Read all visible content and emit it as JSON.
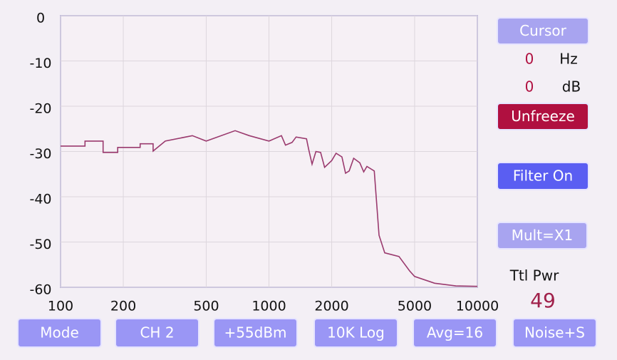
{
  "chart_data": {
    "type": "line",
    "log_x": true,
    "color": "#9a3a6e",
    "grid": true,
    "x": [
      100,
      131,
      131,
      160,
      160,
      188,
      188,
      241,
      241,
      278,
      278,
      318,
      429,
      500,
      688,
      805,
      1000,
      1148,
      1200,
      1291,
      1350,
      1514,
      1550,
      1610,
      1680,
      1770,
      1850,
      2000,
      2100,
      2240,
      2330,
      2426,
      2550,
      2728,
      2850,
      2952,
      3200,
      3375,
      3594,
      4207,
      4733,
      5000,
      6237,
      7885,
      10000
    ],
    "values": [
      -28.8,
      -28.8,
      -27.7,
      -27.7,
      -30.2,
      -30.2,
      -29.1,
      -29.1,
      -28.3,
      -28.3,
      -29.9,
      -27.7,
      -26.5,
      -27.7,
      -25.4,
      -26.5,
      -27.7,
      -26.5,
      -28.6,
      -28.0,
      -26.8,
      -27.2,
      -29.5,
      -32.8,
      -30.0,
      -30.2,
      -33.5,
      -32.0,
      -30.4,
      -31.2,
      -34.8,
      -34.3,
      -31.5,
      -32.5,
      -34.5,
      -33.3,
      -34.3,
      -48.5,
      -52.4,
      -53.2,
      -56.4,
      -57.6,
      -59.1,
      -59.7,
      -59.8
    ],
    "xlim": [
      100,
      10000
    ],
    "ylim": [
      -60,
      0
    ],
    "xticks": [
      100,
      200,
      500,
      1000,
      2000,
      5000,
      10000
    ],
    "yticks": [
      0,
      -10,
      -20,
      -30,
      -40,
      -50,
      -60
    ]
  },
  "side_panel": {
    "cursor_button": "Cursor",
    "cursor_hz": 0,
    "hz_unit": "Hz",
    "cursor_db": 0,
    "db_unit": "dB",
    "freeze_button": "Unfreeze",
    "filter_button": "Filter On",
    "mult_button": "Mult=X1",
    "total_power_label": "Ttl Pwr",
    "total_power": 49
  },
  "bottom_buttons": [
    "Mode",
    "CH 2",
    "+55dBm",
    "10K Log",
    "Avg=16",
    "Noise+S"
  ]
}
